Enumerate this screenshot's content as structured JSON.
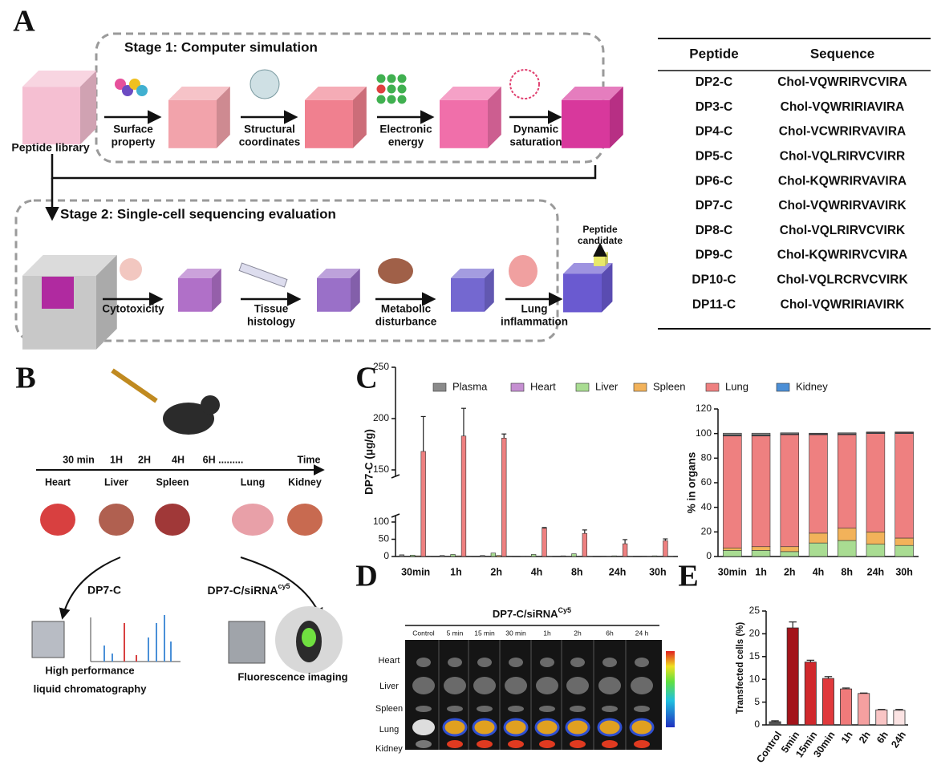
{
  "panel_labels": [
    "A",
    "B",
    "C",
    "D",
    "E"
  ],
  "panel_a": {
    "stage1": "Stage 1:  Computer simulation",
    "stage2": "Stage 2: Single-cell sequencing evaluation",
    "library": "Peptide library",
    "stage1_steps": [
      [
        "Surface",
        "property"
      ],
      [
        "Structural",
        "coordinates"
      ],
      [
        "Electronic",
        "energy"
      ],
      [
        "Dynamic",
        "saturation"
      ]
    ],
    "stage2_steps": [
      [
        "Cytotoxicity"
      ],
      [
        "Tissue",
        "histology"
      ],
      [
        "Metabolic",
        "disturbance"
      ],
      [
        "Lung",
        "inflammation"
      ]
    ],
    "candidate": [
      "Peptide",
      "candidate"
    ]
  },
  "table": {
    "header": [
      "Peptide",
      "Sequence"
    ],
    "rows": [
      [
        "DP2-C",
        "Chol-VQWRIRVCVIRA"
      ],
      [
        "DP3-C",
        "Chol-VQWRIRIAVIRA"
      ],
      [
        "DP4-C",
        "Chol-VCWRIRVAVIRA"
      ],
      [
        "DP5-C",
        "Chol-VQLRIRVCVIRR"
      ],
      [
        "DP6-C",
        "Chol-KQWRIRVAVIRA"
      ],
      [
        "DP7-C",
        "Chol-VQWRIRVAVIRK"
      ],
      [
        "DP8-C",
        "Chol-VQLRIRVCVIRK"
      ],
      [
        "DP9-C",
        "Chol-KQWRIRVCVIRA"
      ],
      [
        "DP10-C",
        "Chol-VQLRCRVCVIRK"
      ],
      [
        "DP11-C",
        "Chol-VQWRIRIAVIRK"
      ]
    ]
  },
  "panel_b": {
    "timeline": [
      "30 min",
      "1H",
      "2H",
      "4H",
      "6H .........",
      "Time"
    ],
    "organs": [
      "Heart",
      "Liver",
      "Spleen",
      "Lung",
      "Kidney"
    ],
    "method_left": "DP7-C",
    "method_right": {
      "text": "DP7-C/siRNA",
      "sup": "cy5"
    },
    "hplc": [
      "High performance",
      "liquid chromatography"
    ],
    "imaging": "Fluorescence imaging"
  },
  "panel_d": {
    "title": {
      "text": "DP7-C/siRNA",
      "sup": "Cy5"
    },
    "columns": [
      "Control",
      "5 min",
      "15 min",
      "30 min",
      "1h",
      "2h",
      "6h",
      "24 h"
    ],
    "rows": [
      "Heart",
      "Liver",
      "Spleen",
      "Lung",
      "Kidney"
    ]
  },
  "chart_data": [
    {
      "type": "bar",
      "ylabel": "DP7-C (μg/g)",
      "legend": "top",
      "categories": [
        "30min",
        "1h",
        "2h",
        "4h",
        "8h",
        "24h",
        "30h"
      ],
      "ylim": [
        0,
        250
      ],
      "yticks": [
        0,
        50,
        100,
        150,
        200,
        250
      ],
      "axis_break": [
        100,
        150
      ],
      "series": [
        {
          "name": "Plasma",
          "color": "#8a8a8a",
          "values": [
            5,
            3,
            3,
            0.5,
            2,
            1,
            1
          ]
        },
        {
          "name": "Heart",
          "color": "#c58fd1",
          "values": [
            1,
            1,
            1,
            0.5,
            0.5,
            0.5,
            0.5
          ]
        },
        {
          "name": "Liver",
          "color": "#a9dc92",
          "values": [
            4,
            6,
            10,
            6,
            8,
            2,
            2
          ]
        },
        {
          "name": "Spleen",
          "color": "#f2b25a",
          "values": [
            2,
            2,
            3,
            1,
            1,
            1,
            1
          ]
        },
        {
          "name": "Lung",
          "color": "#ee8080",
          "values": [
            168,
            183,
            181,
            82,
            67,
            37,
            46
          ],
          "errors": [
            34,
            27,
            4,
            2,
            10,
            12,
            5
          ]
        },
        {
          "name": "Kidney",
          "color": "#4c8fd6",
          "values": [
            1,
            1,
            1,
            0.5,
            0.5,
            0.5,
            0.5
          ]
        }
      ]
    },
    {
      "type": "stacked_bar",
      "ylabel": "% in organs",
      "categories": [
        "30min",
        "1h",
        "2h",
        "4h",
        "8h",
        "24h",
        "30h"
      ],
      "ylim": [
        0,
        120
      ],
      "yticks": [
        0,
        20,
        40,
        60,
        80,
        100,
        120
      ],
      "series": [
        {
          "color": "#a9dc92",
          "values": [
            5,
            5,
            4,
            11,
            13,
            10,
            9
          ]
        },
        {
          "color": "#f2b25a",
          "values": [
            2,
            3,
            4,
            8,
            10,
            10,
            6
          ]
        },
        {
          "color": "#ee8080",
          "values": [
            91,
            90,
            91,
            80,
            76,
            80,
            85
          ]
        },
        {
          "color": "#4c8fd6",
          "values": [
            0.5,
            0.5,
            0.5,
            0.5,
            0.5,
            0.5,
            0.5
          ]
        },
        {
          "color": "#c58fd1",
          "values": [
            0.3,
            0.3,
            0.3,
            0.3,
            0.3,
            0.3,
            0.3
          ]
        },
        {
          "color": "#8a8a8a",
          "values": [
            1.5,
            1.5,
            0.8,
            0.5,
            0.8,
            0.5,
            0.5
          ]
        }
      ]
    },
    {
      "type": "bar",
      "ylabel": "Transfected cells (%)",
      "categories": [
        "Control",
        "5min",
        "15min",
        "30min",
        "1h",
        "2h",
        "6h",
        "24h"
      ],
      "values": [
        0.7,
        21.3,
        13.8,
        10.2,
        7.9,
        6.9,
        3.3,
        3.2
      ],
      "errors": [
        0.2,
        1.3,
        0.4,
        0.4,
        0.2,
        0.1,
        0.1,
        0.2
      ],
      "colors": [
        "#555555",
        "#a3131a",
        "#d0282c",
        "#e0393c",
        "#f07a7a",
        "#f5a0a0",
        "#f9c5c5",
        "#fbe3e3"
      ],
      "ylim": [
        0,
        25
      ],
      "yticks": [
        0,
        5,
        10,
        15,
        20,
        25
      ]
    }
  ]
}
